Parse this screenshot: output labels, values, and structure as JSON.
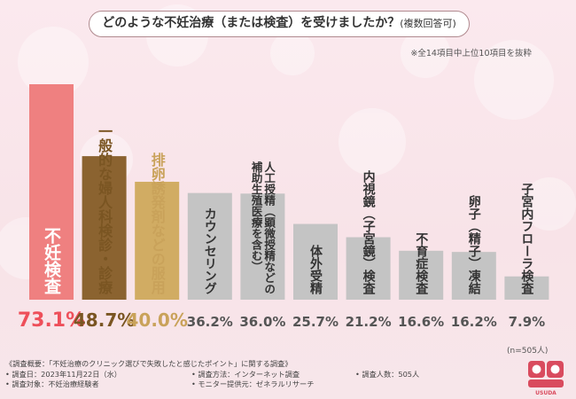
{
  "header": {
    "title": "どのような不妊治療（または検査）を受けましたか？",
    "title_suffix": "(複数回答可)",
    "note": "※全14項目中上位10項目を抜粋"
  },
  "chart_data": {
    "type": "bar",
    "title": "どのような不妊治療（または検査）を受けましたか？(複数回答可)",
    "unit": "%",
    "ylim": [
      0,
      80
    ],
    "categories": [
      "不妊検査",
      "一般的な婦人科検診・診療",
      "排卵誘発剤などの服用",
      "カウンセリング",
      "人工授精（顕微授精などの補助生殖医療を含む）",
      "体外受精",
      "内視鏡（子宮鏡）検査",
      "不育症検査",
      "卵子（精子）凍結",
      "子宮内フローラ検査"
    ],
    "values": [
      73.1,
      48.7,
      40.0,
      36.2,
      36.0,
      25.7,
      21.2,
      16.6,
      16.2,
      7.9
    ],
    "value_labels": [
      "73.1%",
      "48.7%",
      "40.0%",
      "36.2%",
      "36.0%",
      "25.7%",
      "21.2%",
      "16.6%",
      "16.2%",
      "7.9%"
    ],
    "bar_label_lines": [
      [
        "不妊検査"
      ],
      [
        "一般的な婦人科検診・診療"
      ],
      [
        "排卵誘発剤などの服用"
      ],
      [
        "カウンセリング"
      ],
      [
        "人工授精（顕微授精などの",
        "補助生殖医療を含む）"
      ],
      [
        "体外受精"
      ],
      [
        "内視鏡（子宮鏡）検査"
      ],
      [
        "不育症検査"
      ],
      [
        "卵子（精子）凍結"
      ],
      [
        "子宮内フローラ検査"
      ]
    ],
    "colors": {
      "top1": "#ef8080",
      "top2": "#8b6330",
      "top3": "#d1ac63",
      "other": "#c4c4c4",
      "top1_text": "#ee4f5a",
      "top2_text": "#7a5522",
      "top3_text": "#c9a25a",
      "other_text": "#555555"
    }
  },
  "sample": {
    "n_label": "(n=505人)"
  },
  "footer": {
    "overview": "《調査概要：「不妊治療のクリニック選びで失敗したと感じたポイント」に関する調査》",
    "date": "• 調査日：2023年11月22日（水）",
    "method": "• 調査方法：インターネット調査",
    "count": "• 調査人数：505人",
    "target": "• 調査対象：不妊治療経験者",
    "provider": "• モニター提供元：ゼネラルリサーチ"
  },
  "logo": {
    "text": "USUDA"
  }
}
